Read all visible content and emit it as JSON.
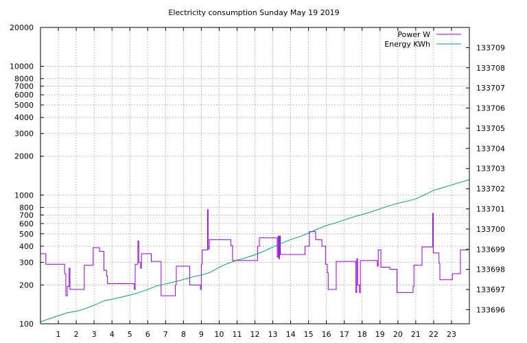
{
  "chart_data": {
    "type": "line",
    "title": "Electricity consumption Sunday May 19 2019",
    "x_ticks": [
      "1",
      "2",
      "3",
      "4",
      "5",
      "6",
      "7",
      "8",
      "9",
      "10",
      "11",
      "12",
      "13",
      "14",
      "15",
      "16",
      "17",
      "18",
      "19",
      "20",
      "21",
      "22",
      "23"
    ],
    "xlim": [
      0,
      24
    ],
    "y_left": {
      "scale": "log",
      "ylim": [
        100,
        20000
      ],
      "ticks": [
        100,
        200,
        300,
        400,
        500,
        600,
        700,
        800,
        1000,
        2000,
        3000,
        4000,
        5000,
        6000,
        7000,
        8000,
        10000,
        20000
      ],
      "tick_labels": [
        "100",
        "200",
        "300",
        "400",
        "500",
        "600",
        "700",
        "800",
        "1000",
        "2000",
        "3000",
        "4000",
        "5000",
        "6000",
        "7000",
        "8000",
        "10000",
        "20000"
      ]
    },
    "y_right": {
      "scale": "linear",
      "ylim": [
        133695.3,
        133710.0
      ],
      "ticks": [
        133696,
        133697,
        133698,
        133699,
        133700,
        133701,
        133702,
        133703,
        133704,
        133705,
        133706,
        133707,
        133708,
        133709
      ],
      "tick_labels": [
        "133696",
        "133697",
        "133698",
        "133699",
        "133700",
        "133701",
        "133702",
        "133703",
        "133704",
        "133705",
        "133706",
        "133707",
        "133708",
        "133709"
      ]
    },
    "grid": true,
    "legend_position": "top-right",
    "series": [
      {
        "name": "Power W",
        "axis": "left",
        "color": "#9400d3",
        "points": [
          [
            0,
            350
          ],
          [
            0.3,
            350
          ],
          [
            0.3,
            290
          ],
          [
            1.35,
            290
          ],
          [
            1.35,
            245
          ],
          [
            1.42,
            245
          ],
          [
            1.42,
            165
          ],
          [
            1.5,
            165
          ],
          [
            1.5,
            195
          ],
          [
            1.6,
            195
          ],
          [
            1.6,
            270
          ],
          [
            1.65,
            270
          ],
          [
            1.65,
            185
          ],
          [
            2.45,
            185
          ],
          [
            2.45,
            285
          ],
          [
            2.95,
            285
          ],
          [
            2.95,
            390
          ],
          [
            3.3,
            390
          ],
          [
            3.3,
            365
          ],
          [
            3.55,
            365
          ],
          [
            3.55,
            260
          ],
          [
            3.7,
            260
          ],
          [
            3.7,
            235
          ],
          [
            3.75,
            235
          ],
          [
            3.75,
            205
          ],
          [
            5.25,
            205
          ],
          [
            5.25,
            185
          ],
          [
            5.3,
            185
          ],
          [
            5.3,
            290
          ],
          [
            5.45,
            290
          ],
          [
            5.45,
            440
          ],
          [
            5.5,
            440
          ],
          [
            5.5,
            300
          ],
          [
            5.6,
            300
          ],
          [
            5.6,
            270
          ],
          [
            5.65,
            270
          ],
          [
            5.65,
            350
          ],
          [
            6.2,
            350
          ],
          [
            6.2,
            305
          ],
          [
            6.75,
            305
          ],
          [
            6.75,
            165
          ],
          [
            7.55,
            165
          ],
          [
            7.55,
            200
          ],
          [
            7.6,
            200
          ],
          [
            7.6,
            280
          ],
          [
            8.35,
            280
          ],
          [
            8.35,
            200
          ],
          [
            8.95,
            200
          ],
          [
            8.95,
            185
          ],
          [
            9.0,
            185
          ],
          [
            9.0,
            290
          ],
          [
            9.05,
            290
          ],
          [
            9.05,
            375
          ],
          [
            9.35,
            375
          ],
          [
            9.35,
            770
          ],
          [
            9.38,
            770
          ],
          [
            9.38,
            380
          ],
          [
            9.45,
            380
          ],
          [
            9.45,
            450
          ],
          [
            10.65,
            450
          ],
          [
            10.65,
            405
          ],
          [
            10.75,
            405
          ],
          [
            10.75,
            310
          ],
          [
            12.15,
            310
          ],
          [
            12.15,
            400
          ],
          [
            12.25,
            400
          ],
          [
            12.25,
            465
          ],
          [
            13.25,
            465
          ],
          [
            13.25,
            330
          ],
          [
            13.3,
            330
          ],
          [
            13.3,
            480
          ],
          [
            13.33,
            480
          ],
          [
            13.33,
            320
          ],
          [
            13.38,
            320
          ],
          [
            13.38,
            480
          ],
          [
            13.42,
            480
          ],
          [
            13.42,
            345
          ],
          [
            14.8,
            345
          ],
          [
            14.8,
            400
          ],
          [
            15.05,
            400
          ],
          [
            15.05,
            520
          ],
          [
            15.4,
            520
          ],
          [
            15.4,
            450
          ],
          [
            15.75,
            450
          ],
          [
            15.75,
            400
          ],
          [
            15.95,
            400
          ],
          [
            15.95,
            290
          ],
          [
            16.05,
            290
          ],
          [
            16.05,
            250
          ],
          [
            16.1,
            250
          ],
          [
            16.1,
            185
          ],
          [
            16.55,
            185
          ],
          [
            16.55,
            305
          ],
          [
            17.65,
            305
          ],
          [
            17.65,
            175
          ],
          [
            17.7,
            175
          ],
          [
            17.7,
            320
          ],
          [
            17.75,
            320
          ],
          [
            17.75,
            200
          ],
          [
            17.85,
            200
          ],
          [
            17.85,
            175
          ],
          [
            17.9,
            175
          ],
          [
            17.9,
            310
          ],
          [
            18.85,
            310
          ],
          [
            18.85,
            280
          ],
          [
            18.9,
            280
          ],
          [
            18.9,
            375
          ],
          [
            19.05,
            375
          ],
          [
            19.05,
            275
          ],
          [
            19.55,
            275
          ],
          [
            19.55,
            265
          ],
          [
            19.95,
            265
          ],
          [
            19.95,
            175
          ],
          [
            20.85,
            175
          ],
          [
            20.85,
            195
          ],
          [
            20.9,
            195
          ],
          [
            20.9,
            285
          ],
          [
            21.35,
            285
          ],
          [
            21.35,
            395
          ],
          [
            21.95,
            395
          ],
          [
            21.95,
            720
          ],
          [
            21.98,
            720
          ],
          [
            21.98,
            355
          ],
          [
            22.3,
            355
          ],
          [
            22.3,
            295
          ],
          [
            22.35,
            295
          ],
          [
            22.35,
            220
          ],
          [
            23.05,
            220
          ],
          [
            23.05,
            245
          ],
          [
            23.5,
            245
          ],
          [
            23.5,
            375
          ],
          [
            23.95,
            375
          ]
        ]
      },
      {
        "name": "Energy KWh",
        "axis": "right",
        "color": "#009e73",
        "points": [
          [
            0,
            133695.4
          ],
          [
            0.5,
            133695.55
          ],
          [
            1,
            133695.7
          ],
          [
            1.5,
            133695.85
          ],
          [
            2,
            133695.92
          ],
          [
            2.5,
            133696.05
          ],
          [
            3,
            133696.22
          ],
          [
            3.5,
            133696.42
          ],
          [
            4,
            133696.52
          ],
          [
            4.5,
            133696.62
          ],
          [
            5,
            133696.72
          ],
          [
            5.5,
            133696.85
          ],
          [
            6,
            133697.0
          ],
          [
            6.5,
            133697.18
          ],
          [
            7,
            133697.28
          ],
          [
            7.5,
            133697.38
          ],
          [
            8,
            133697.5
          ],
          [
            8.5,
            133697.62
          ],
          [
            9,
            133697.72
          ],
          [
            9.5,
            133697.85
          ],
          [
            10,
            133698.1
          ],
          [
            10.5,
            133698.3
          ],
          [
            11,
            133698.45
          ],
          [
            11.5,
            133698.58
          ],
          [
            12,
            133698.72
          ],
          [
            12.5,
            133698.9
          ],
          [
            13,
            133699.1
          ],
          [
            13.5,
            133699.3
          ],
          [
            14,
            133699.48
          ],
          [
            14.5,
            133699.62
          ],
          [
            15,
            133699.8
          ],
          [
            15.5,
            133700.0
          ],
          [
            16,
            133700.18
          ],
          [
            16.5,
            133700.3
          ],
          [
            17,
            133700.45
          ],
          [
            17.5,
            133700.6
          ],
          [
            18,
            133700.72
          ],
          [
            18.5,
            133700.85
          ],
          [
            19,
            133701.0
          ],
          [
            19.5,
            133701.15
          ],
          [
            20,
            133701.28
          ],
          [
            20.5,
            133701.38
          ],
          [
            21,
            133701.5
          ],
          [
            21.5,
            133701.7
          ],
          [
            22,
            133701.92
          ],
          [
            22.5,
            133702.05
          ],
          [
            23,
            133702.18
          ],
          [
            23.5,
            133702.32
          ],
          [
            24,
            133702.45
          ]
        ]
      }
    ]
  }
}
